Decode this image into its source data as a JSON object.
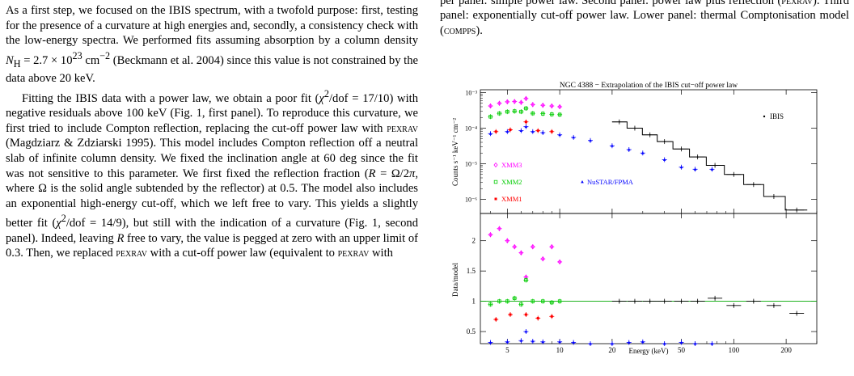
{
  "paper": {
    "left_paragraphs": [
      "As a first step, we focused on the IBIS spectrum, with a twofold purpose: first, testing for the presence of a curvature at high energies and, secondly, a consistency check with the low-energy spectra. We performed fits assuming absorption by a column density N_H = 2.7 × 10^23 cm^−2 (Beckmann et al. 2004) since this value is not constrained by the data above 20 keV.",
      "Fitting the IBIS data with a power law, we obtain a poor fit (χ²/dof = 17/10) with negative residuals above 100 keV (Fig. 1, first panel). To reproduce this curvature, we first tried to include Compton reflection, replacing the cut-off power law with PEXRAV (Magdziarz & Zdziarski 1995). This model includes Compton reflection off a neutral slab of infinite column density. We fixed the inclination angle at 60 deg since the fit was not sensitive to this parameter. We first fixed the reflection fraction (R = Ω/2π, where Ω is the solid angle subtended by the reflector) at 0.5. The model also includes an exponential high-energy cut-off, which we left free to vary. This yields a slightly better fit (χ²/dof = 14/9), but still with the indication of a curvature (Fig. 1, second panel). Indeed, leaving R free to vary, the value is pegged at zero with an upper limit of 0.3. Then, we replaced PEXRAV with a cut-off power law (equivalent to PEXRAV with"
    ],
    "caption_text": "per panel: simple power law. Second panel: power law plus reflection (PEXRAV). Third panel: exponentially cut-off power law. Lower panel: thermal Comptonisation model (COMPPS)."
  },
  "figure": {
    "title": "NGC 4388 − Extrapolation of the IBIS cut−off power law",
    "top_ylabel": "Counts s⁻¹ keV⁻¹ cm⁻²",
    "bottom_ylabel": "Data/model",
    "xlabel": "Energy (keV)",
    "top_ytick_labels": [
      "10⁻³",
      "10⁻⁴",
      "10⁻⁵",
      "10⁻⁶"
    ],
    "bottom_ytick_labels": [
      "2",
      "1.5",
      "1",
      "0.5"
    ],
    "xtick_labels": [
      "5",
      "10",
      "20",
      "50",
      "100",
      "200"
    ],
    "legend": {
      "ibis": "IBIS",
      "xmm3": "XMM3",
      "xmm2": "XMM2",
      "xmm1": "XMM1",
      "nustar": "NuSTAR/FPMA"
    },
    "colors": {
      "ibis": "#000000",
      "xmm3": "#ff00ff",
      "xmm2": "#00cc00",
      "xmm1": "#ff0000",
      "nustar": "#0000ff",
      "model": "#00aa00"
    }
  },
  "chart_data": {
    "type": "scatter",
    "title": "NGC 4388 − Extrapolation of the IBIS cut−off power law",
    "xlabel": "Energy (keV)",
    "x_scale": "log",
    "xlim": [
      3.5,
      300
    ],
    "panels": [
      {
        "ylabel": "Counts s⁻¹ keV⁻¹ cm⁻²",
        "y_scale": "log",
        "ylim": [
          4e-07,
          0.0012
        ],
        "series": [
          {
            "name": "IBIS",
            "x": [
              22,
              27,
              33,
              40,
              50,
              62,
              78,
              100,
              130,
              170,
              230
            ],
            "y": [
              0.00015,
              0.0001,
              6.5e-05,
              4.2e-05,
              2.6e-05,
              1.55e-05,
              9e-06,
              5e-06,
              2.6e-06,
              1.2e-06,
              5e-07
            ]
          },
          {
            "name": "XMM3",
            "x": [
              4,
              4.5,
              5,
              5.5,
              6,
              6.4,
              7,
              8,
              9,
              10
            ],
            "y": [
              0.00042,
              0.0005,
              0.00055,
              0.00056,
              0.00053,
              0.00068,
              0.00046,
              0.00044,
              0.00042,
              0.0004
            ]
          },
          {
            "name": "XMM2",
            "x": [
              4,
              4.5,
              5,
              5.5,
              6,
              6.4,
              7,
              8,
              9,
              10
            ],
            "y": [
              0.00021,
              0.00026,
              0.00029,
              0.0003,
              0.00029,
              0.00036,
              0.00026,
              0.000255,
              0.000245,
              0.00024
            ]
          },
          {
            "name": "XMM1",
            "x": [
              4.3,
              5.2,
              6.4,
              7.5,
              9
            ],
            "y": [
              8e-05,
              9e-05,
              0.00015,
              8.5e-05,
              8e-05
            ]
          },
          {
            "name": "NuSTAR/FPMA",
            "x": [
              4,
              5,
              6,
              6.4,
              7,
              8,
              10,
              12,
              15,
              20,
              25,
              30,
              40,
              50,
              60,
              75
            ],
            "y": [
              7e-05,
              8e-05,
              8.5e-05,
              0.00011,
              8e-05,
              7.5e-05,
              6.5e-05,
              5.5e-05,
              4.5e-05,
              3.2e-05,
              2.5e-05,
              2e-05,
              1.3e-05,
              8e-06,
              7e-06,
              7e-06
            ]
          }
        ]
      },
      {
        "ylabel": "Data/model",
        "y_scale": "linear",
        "ylim": [
          0.3,
          2.45
        ],
        "series": [
          {
            "name": "IBIS",
            "x": [
              22,
              27,
              33,
              40,
              50,
              62,
              78,
              100,
              130,
              170,
              230
            ],
            "y": [
              1.0,
              1.0,
              1.0,
              1.0,
              1.0,
              1.0,
              1.05,
              0.93,
              1.0,
              0.93,
              0.8
            ]
          },
          {
            "name": "XMM3",
            "x": [
              4,
              4.5,
              5,
              5.5,
              6,
              6.4,
              7,
              8,
              9,
              10
            ],
            "y": [
              2.1,
              2.2,
              2.0,
              1.9,
              1.8,
              1.4,
              1.9,
              1.7,
              1.9,
              1.65
            ]
          },
          {
            "name": "XMM2",
            "x": [
              4,
              4.5,
              5,
              5.5,
              6,
              6.4,
              7,
              8,
              9,
              10
            ],
            "y": [
              0.95,
              1.0,
              1.0,
              1.05,
              0.95,
              1.35,
              1.0,
              1.0,
              0.98,
              1.0
            ]
          },
          {
            "name": "XMM1",
            "x": [
              4.3,
              5.2,
              6.4,
              7.5,
              9
            ],
            "y": [
              0.7,
              0.78,
              0.78,
              0.72,
              0.75
            ]
          },
          {
            "name": "NuSTAR/FPMA",
            "x": [
              4,
              5,
              6,
              6.4,
              7,
              8,
              10,
              12,
              15,
              20,
              25,
              30,
              40,
              50,
              60,
              75
            ],
            "y": [
              0.32,
              0.33,
              0.35,
              0.5,
              0.34,
              0.33,
              0.33,
              0.32,
              0.3,
              0.3,
              0.32,
              0.33,
              0.3,
              0.32,
              0.3,
              0.3
            ]
          }
        ]
      }
    ]
  }
}
